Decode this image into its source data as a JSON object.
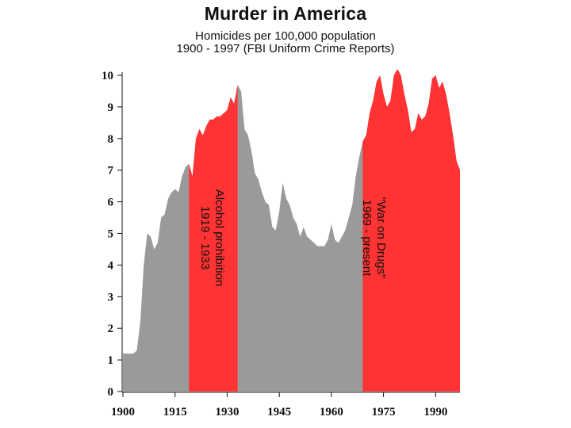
{
  "chart_data": {
    "type": "area",
    "title": "Murder in America",
    "subtitle_lines": [
      "Homicides per 100,000 population",
      "1900 - 1997 (FBI Uniform Crime Reports)"
    ],
    "xlabel": "",
    "ylabel": "",
    "xlim": [
      1900,
      1997
    ],
    "ylim": [
      0,
      10
    ],
    "grid": false,
    "x_ticks": [
      1900,
      1915,
      1930,
      1945,
      1960,
      1975,
      1990
    ],
    "y_ticks": [
      0,
      1,
      2,
      3,
      4,
      5,
      6,
      7,
      8,
      9,
      10
    ],
    "colors": {
      "normal": "#9a9a9a",
      "highlight": "#ff3333"
    },
    "series": [
      {
        "x": [
          1900,
          1901,
          1902,
          1903,
          1904,
          1905,
          1906,
          1907,
          1908,
          1909,
          1910,
          1911,
          1912,
          1913,
          1914,
          1915,
          1916,
          1917,
          1918,
          1919,
          1920,
          1921,
          1922,
          1923,
          1924,
          1925,
          1926,
          1927,
          1928,
          1929,
          1930,
          1931,
          1932,
          1933,
          1934,
          1935,
          1936,
          1937,
          1938,
          1939,
          1940,
          1941,
          1942,
          1943,
          1944,
          1945,
          1946,
          1947,
          1948,
          1949,
          1950,
          1951,
          1952,
          1953,
          1954,
          1955,
          1956,
          1957,
          1958,
          1959,
          1960,
          1961,
          1962,
          1963,
          1964,
          1965,
          1966,
          1967,
          1968,
          1969,
          1970,
          1971,
          1972,
          1973,
          1974,
          1975,
          1976,
          1977,
          1978,
          1979,
          1980,
          1981,
          1982,
          1983,
          1984,
          1985,
          1986,
          1987,
          1988,
          1989,
          1990,
          1991,
          1992,
          1993,
          1994,
          1995,
          1996,
          1997
        ],
        "values": [
          1.2,
          1.2,
          1.2,
          1.2,
          1.3,
          2.2,
          4.0,
          5.0,
          4.9,
          4.5,
          4.7,
          5.5,
          5.6,
          6.1,
          6.3,
          6.4,
          6.3,
          6.8,
          7.1,
          7.2,
          6.8,
          8.0,
          8.3,
          8.1,
          8.4,
          8.6,
          8.6,
          8.7,
          8.7,
          8.8,
          8.9,
          9.3,
          9.1,
          9.7,
          9.5,
          8.3,
          8.1,
          7.6,
          6.9,
          6.7,
          6.3,
          6.0,
          5.9,
          5.2,
          5.1,
          5.7,
          6.6,
          6.1,
          5.9,
          5.5,
          5.3,
          4.9,
          5.2,
          4.9,
          4.8,
          4.7,
          4.6,
          4.6,
          4.6,
          4.8,
          5.3,
          4.8,
          4.7,
          4.9,
          5.1,
          5.5,
          5.9,
          6.8,
          7.4,
          7.9,
          8.1,
          8.8,
          9.2,
          9.8,
          10.0,
          9.4,
          9.0,
          9.2,
          10.0,
          10.2,
          10.0,
          9.4,
          8.9,
          8.2,
          8.3,
          8.8,
          8.6,
          8.7,
          9.1,
          9.9,
          10.0,
          9.6,
          9.8,
          9.4,
          8.8,
          8.1,
          7.3,
          7.0
        ]
      }
    ],
    "highlight_ranges": [
      {
        "start": 1919,
        "end": 1933,
        "label_lines": [
          "Alcohol prohibition",
          "1919 - 1933"
        ]
      },
      {
        "start": 1969,
        "end": 1997,
        "label_lines": [
          "\"War on Drugs\"",
          "1969 - present"
        ]
      }
    ]
  }
}
